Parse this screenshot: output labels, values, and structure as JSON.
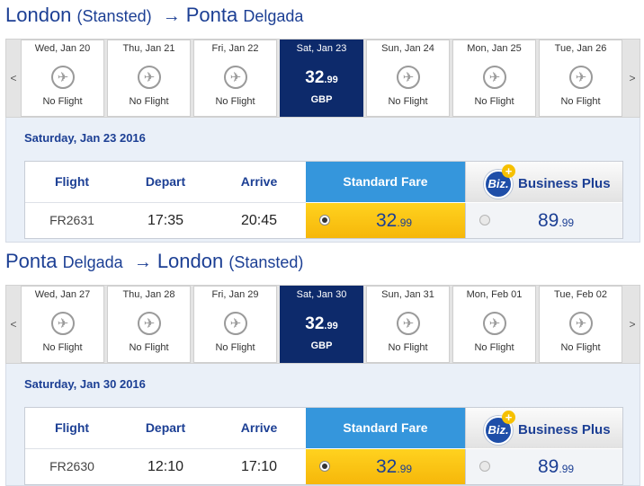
{
  "colors": {
    "brand": "#1c3f94",
    "selected_day": "#0d2a6b",
    "standard_fare": "#3596dc",
    "fare_cell": "#ffd21f"
  },
  "sections": [
    {
      "route": {
        "from_city": "London",
        "from_airport": "(Stansted)",
        "arrow": "→",
        "to_city": "Ponta",
        "to_suffix": "Delgada"
      },
      "nav": {
        "prev": "<",
        "next": ">"
      },
      "days": [
        {
          "label": "Wed, Jan 20",
          "status": "No Flight"
        },
        {
          "label": "Thu, Jan 21",
          "status": "No Flight"
        },
        {
          "label": "Fri, Jan 22",
          "status": "No Flight"
        },
        {
          "label": "Sat, Jan 23",
          "price": "32",
          "cents": ".99",
          "currency": "GBP"
        },
        {
          "label": "Sun, Jan 24",
          "status": "No Flight"
        },
        {
          "label": "Mon, Jan 25",
          "status": "No Flight"
        },
        {
          "label": "Tue, Jan 26",
          "status": "No Flight"
        }
      ],
      "selected_date": "Saturday, Jan 23 2016",
      "headers": {
        "flight": "Flight",
        "depart": "Depart",
        "arrive": "Arrive",
        "standard": "Standard Fare",
        "business": "Business Plus",
        "biz_logo": "Biz.",
        "biz_plus": "+"
      },
      "row": {
        "flight": "FR2631",
        "depart": "17:35",
        "arrive": "20:45",
        "std_price": "32",
        "std_cents": ".99",
        "bp_price": "89",
        "bp_cents": ".99"
      }
    },
    {
      "route": {
        "from_city": "Ponta",
        "from_suffix": "Delgada",
        "arrow": "→",
        "to_city": "London",
        "to_airport": "(Stansted)"
      },
      "nav": {
        "prev": "<",
        "next": ">"
      },
      "days": [
        {
          "label": "Wed, Jan 27",
          "status": "No Flight"
        },
        {
          "label": "Thu, Jan 28",
          "status": "No Flight"
        },
        {
          "label": "Fri, Jan 29",
          "status": "No Flight"
        },
        {
          "label": "Sat, Jan 30",
          "price": "32",
          "cents": ".99",
          "currency": "GBP"
        },
        {
          "label": "Sun, Jan 31",
          "status": "No Flight"
        },
        {
          "label": "Mon, Feb 01",
          "status": "No Flight"
        },
        {
          "label": "Tue, Feb 02",
          "status": "No Flight"
        }
      ],
      "selected_date": "Saturday, Jan 30 2016",
      "headers": {
        "flight": "Flight",
        "depart": "Depart",
        "arrive": "Arrive",
        "standard": "Standard Fare",
        "business": "Business Plus",
        "biz_logo": "Biz.",
        "biz_plus": "+"
      },
      "row": {
        "flight": "FR2630",
        "depart": "12:10",
        "arrive": "17:10",
        "std_price": "32",
        "std_cents": ".99",
        "bp_price": "89",
        "bp_cents": ".99"
      }
    }
  ]
}
